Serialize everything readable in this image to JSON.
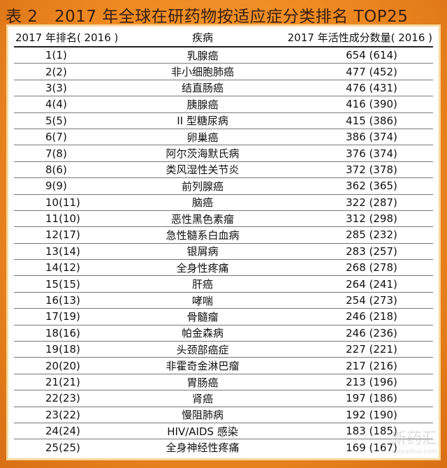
{
  "title": "表 2　2017 年全球在研药物按适应症分类排名 TOP25",
  "columns": [
    "2017 年排名( 2016 )",
    "疾病",
    "2017 年活性成分数量( 2016 )"
  ],
  "rows": [
    [
      "1(1)",
      "乳腺癌",
      "654  (614)"
    ],
    [
      "2(2)",
      "非小细胞肺癌",
      "477  (452)"
    ],
    [
      "3(3)",
      "结直肠癌",
      "476  (431)"
    ],
    [
      "4(4)",
      "胰腺癌",
      "416  (390)"
    ],
    [
      "5(5)",
      "II 型糖尿病",
      "415  (386)"
    ],
    [
      "6(7)",
      "卵巢癌",
      "386  (374)"
    ],
    [
      "7(8)",
      "阿尔茨海默氏病",
      "376  (374)"
    ],
    [
      "8(6)",
      "类风湿性关节炎",
      "372  (378)"
    ],
    [
      "9(9)",
      "前列腺癌",
      "362  (365)"
    ],
    [
      "10(11)",
      "脑癌",
      "322  (287)"
    ],
    [
      "11(10)",
      "恶性黑色素瘤",
      "312  (298)"
    ],
    [
      "12(17)",
      "急性髓系白血病",
      "285  (232)"
    ],
    [
      "13(14)",
      "银屑病",
      "283  (257)"
    ],
    [
      "14(12)",
      "全身性疼痛",
      "268  (278)"
    ],
    [
      "15(15)",
      "肝癌",
      "264  (241)"
    ],
    [
      "16(13)",
      "哮喘",
      "254  (273)"
    ],
    [
      "17(19)",
      "骨髓瘤",
      "246  (218)"
    ],
    [
      "18(16)",
      "帕金森病",
      "246  (236)"
    ],
    [
      "19(18)",
      "头颈部癌症",
      "227  (221)"
    ],
    [
      "20(20)",
      "非霍奇金淋巴瘤",
      "217  (216)"
    ],
    [
      "21(21)",
      "胃肠癌",
      "213  (196)"
    ],
    [
      "22(23)",
      "肾癌",
      "197  (186)"
    ],
    [
      "23(22)",
      "慢阻肺病",
      "192  (190)"
    ],
    [
      "24(24)",
      "HIV/AIDS 感染",
      "183  (185)"
    ],
    [
      "25(25)",
      "全身神经性疼痛",
      "169  (167)"
    ]
  ],
  "watermark": {
    "text": "新药汇",
    "sub": "xinyaohui.com"
  }
}
